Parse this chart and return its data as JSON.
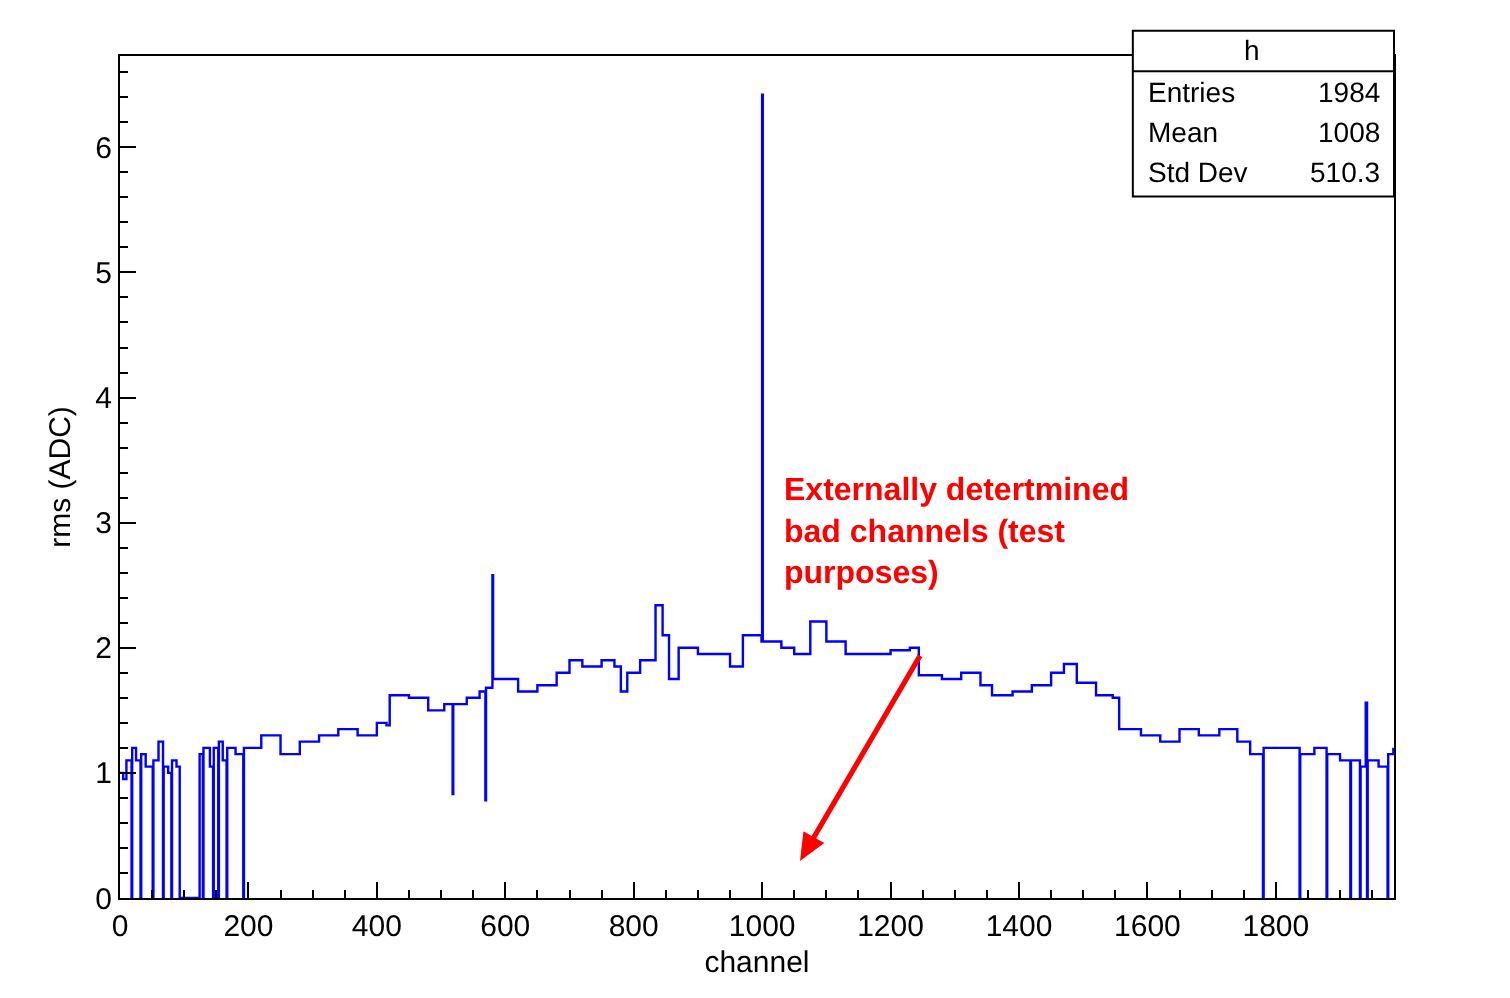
{
  "chart_data": {
    "type": "step",
    "xlabel": "channel",
    "ylabel": "rms (ADC)",
    "xlim": [
      0,
      1984
    ],
    "xticks": [
      0,
      200,
      400,
      600,
      800,
      1000,
      1200,
      1400,
      1600,
      1800
    ],
    "ylim": [
      0,
      6.73
    ],
    "yticks": [
      0,
      1,
      2,
      3,
      4,
      5,
      6
    ],
    "marker": "none",
    "line_style": "solid",
    "series": [
      {
        "color": "#0000ff",
        "x": [
          0,
          5,
          10,
          18,
          19,
          25,
          32,
          33,
          40,
          51,
          52,
          60,
          67,
          68,
          75,
          80,
          81,
          88,
          93,
          124,
          129,
          130,
          140,
          145,
          146,
          153,
          154,
          160,
          166,
          167,
          180,
          192,
          193,
          220,
          250,
          280,
          310,
          340,
          370,
          400,
          415,
          420,
          450,
          480,
          505,
          518,
          519,
          540,
          560,
          569,
          570,
          580,
          581,
          600,
          620,
          650,
          680,
          700,
          720,
          750,
          770,
          780,
          790,
          810,
          834,
          845,
          855,
          870,
          900,
          930,
          950,
          970,
          999,
          1000,
          1001,
          1030,
          1050,
          1075,
          1100,
          1130,
          1160,
          1200,
          1230,
          1244,
          1280,
          1310,
          1340,
          1358,
          1390,
          1420,
          1450,
          1470,
          1490,
          1520,
          1546,
          1556,
          1590,
          1620,
          1650,
          1680,
          1712,
          1740,
          1760,
          1780,
          1781,
          1810,
          1837,
          1838,
          1860,
          1879,
          1880,
          1900,
          1916,
          1917,
          1931,
          1932,
          1940,
          1942,
          1943,
          1960,
          1974,
          1975,
          1983
        ],
        "values": [
          1.0,
          0.95,
          1.1,
          0,
          1.2,
          1.1,
          0,
          1.15,
          1.05,
          0,
          1.1,
          1.25,
          0,
          1.05,
          1.0,
          0,
          1.1,
          1.05,
          0,
          1.15,
          0,
          1.2,
          1.05,
          0,
          1.2,
          0,
          1.25,
          1.1,
          0,
          1.2,
          1.15,
          0,
          1.2,
          1.3,
          1.15,
          1.25,
          1.3,
          1.35,
          1.3,
          1.4,
          1.38,
          1.62,
          1.6,
          1.5,
          1.55,
          0.83,
          1.55,
          1.6,
          1.65,
          0.78,
          1.68,
          2.58,
          1.75,
          1.75,
          1.65,
          1.7,
          1.8,
          1.9,
          1.85,
          1.9,
          1.85,
          1.65,
          1.8,
          1.9,
          2.34,
          2.1,
          1.75,
          2.0,
          1.95,
          1.95,
          1.85,
          2.1,
          2.05,
          6.42,
          2.05,
          2.0,
          1.95,
          2.21,
          2.05,
          1.95,
          1.95,
          1.98,
          2.0,
          1.78,
          1.75,
          1.8,
          1.7,
          1.62,
          1.65,
          1.7,
          1.8,
          1.87,
          1.72,
          1.62,
          1.6,
          1.35,
          1.3,
          1.25,
          1.35,
          1.3,
          1.35,
          1.25,
          1.15,
          0,
          1.2,
          1.2,
          0,
          1.15,
          1.2,
          0,
          1.15,
          1.1,
          0,
          1.1,
          0,
          1.05,
          1.56,
          0,
          1.1,
          1.05,
          0,
          1.15,
          1.2
        ]
      }
    ],
    "annotations": [
      "Externally detertmined\nbad channels (test\npurposes)",
      "h",
      "Entries",
      "1984",
      "Mean",
      "1008",
      "Std Dev",
      "510.3"
    ]
  }
}
